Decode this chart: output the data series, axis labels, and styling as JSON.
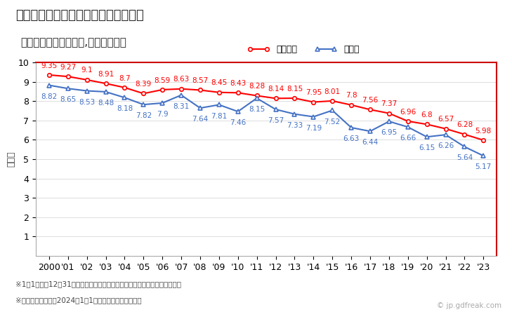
{
  "title": "伊勢市の人口千人当たり出生数の推移",
  "subtitle": "（住民基本台帳ベース,日本人住民）",
  "ylabel": "（人）",
  "legend_ise": "伊勢市",
  "legend_national": "全国平均",
  "footnote1": "※1月1日から12月31日までの外国人を除く日本人住民の千人当たり出生数。",
  "footnote2": "※市区町村の場合は2024年1月1日時点の市区町村境界。",
  "watermark": "© jp.gdfreak.com",
  "years": [
    2000,
    2001,
    2002,
    2003,
    2004,
    2005,
    2006,
    2007,
    2008,
    2009,
    2010,
    2011,
    2012,
    2013,
    2014,
    2015,
    2016,
    2017,
    2018,
    2019,
    2020,
    2021,
    2022,
    2023
  ],
  "ise": [
    8.82,
    8.65,
    8.53,
    8.48,
    8.18,
    7.82,
    7.9,
    8.31,
    7.64,
    7.81,
    7.46,
    8.15,
    7.57,
    7.33,
    7.19,
    7.52,
    6.63,
    6.44,
    6.95,
    6.66,
    6.15,
    6.26,
    5.64,
    5.17
  ],
  "national": [
    9.35,
    9.27,
    9.1,
    8.91,
    8.7,
    8.39,
    8.59,
    8.63,
    8.57,
    8.45,
    8.43,
    8.28,
    8.14,
    8.15,
    7.95,
    8.01,
    7.8,
    7.56,
    7.37,
    6.96,
    6.8,
    6.57,
    6.28,
    5.98
  ],
  "ise_color": "#4472c4",
  "national_color": "#ff0000",
  "ylim_min": 0,
  "ylim_max": 10,
  "yticks": [
    1,
    2,
    3,
    4,
    5,
    6,
    7,
    8,
    9,
    10
  ],
  "bg_color": "#ffffff",
  "plot_bg_color": "#ffffff",
  "border_color": "#cc0000",
  "title_fontsize": 13,
  "subtitle_fontsize": 11,
  "label_fontsize": 7.5,
  "tick_fontsize": 9
}
